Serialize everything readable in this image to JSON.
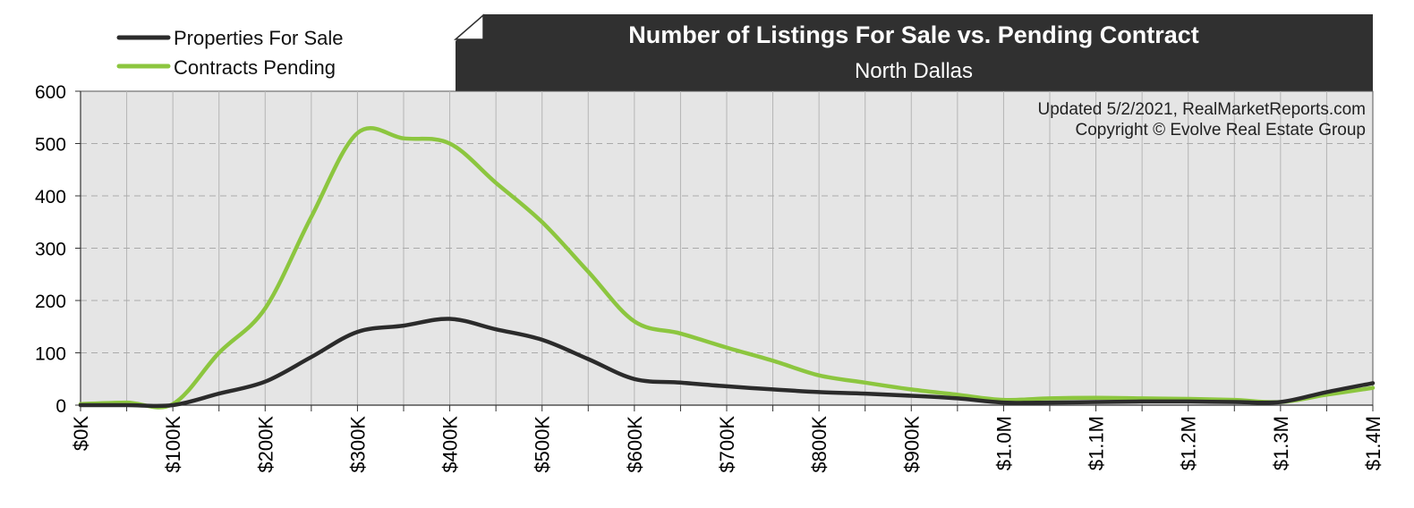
{
  "chart_data": {
    "type": "line",
    "title": "Number of Listings For Sale vs. Pending Contract",
    "subtitle": "North Dallas",
    "credits": [
      "Updated 5/2/2021, RealMarketReports.com",
      "Copyright © Evolve Real Estate Group"
    ],
    "categories": [
      "$0K",
      "$100K",
      "$200K",
      "$300K",
      "$400K",
      "$500K",
      "$600K",
      "$700K",
      "$800K",
      "$900K",
      "$1.0M",
      "$1.1M",
      "$1.2M",
      "$1.3M",
      "$1.4M"
    ],
    "x": [
      0,
      50,
      100,
      150,
      200,
      250,
      300,
      350,
      400,
      450,
      500,
      550,
      600,
      650,
      700,
      750,
      800,
      850,
      900,
      950,
      1000,
      1050,
      1100,
      1150,
      1200,
      1250,
      1300,
      1350,
      1400
    ],
    "x_unit": "thousands of dollars",
    "ylim": [
      0,
      600
    ],
    "yticks": [
      0,
      100,
      200,
      300,
      400,
      500,
      600
    ],
    "grid": true,
    "legend_position": "top-left",
    "series": [
      {
        "name": "Properties For Sale",
        "color": "#2b2b2b",
        "values": [
          0,
          0,
          0,
          22,
          45,
          92,
          140,
          152,
          165,
          145,
          125,
          88,
          50,
          43,
          36,
          30,
          25,
          22,
          18,
          13,
          5,
          5,
          6,
          7,
          7,
          6,
          6,
          25,
          42
        ]
      },
      {
        "name": "Contracts Pending",
        "color": "#8cc63f",
        "values": [
          2,
          5,
          2,
          100,
          185,
          360,
          520,
          510,
          500,
          425,
          350,
          255,
          160,
          137,
          110,
          85,
          57,
          43,
          30,
          20,
          10,
          13,
          14,
          13,
          12,
          10,
          6,
          20,
          33
        ]
      }
    ]
  }
}
